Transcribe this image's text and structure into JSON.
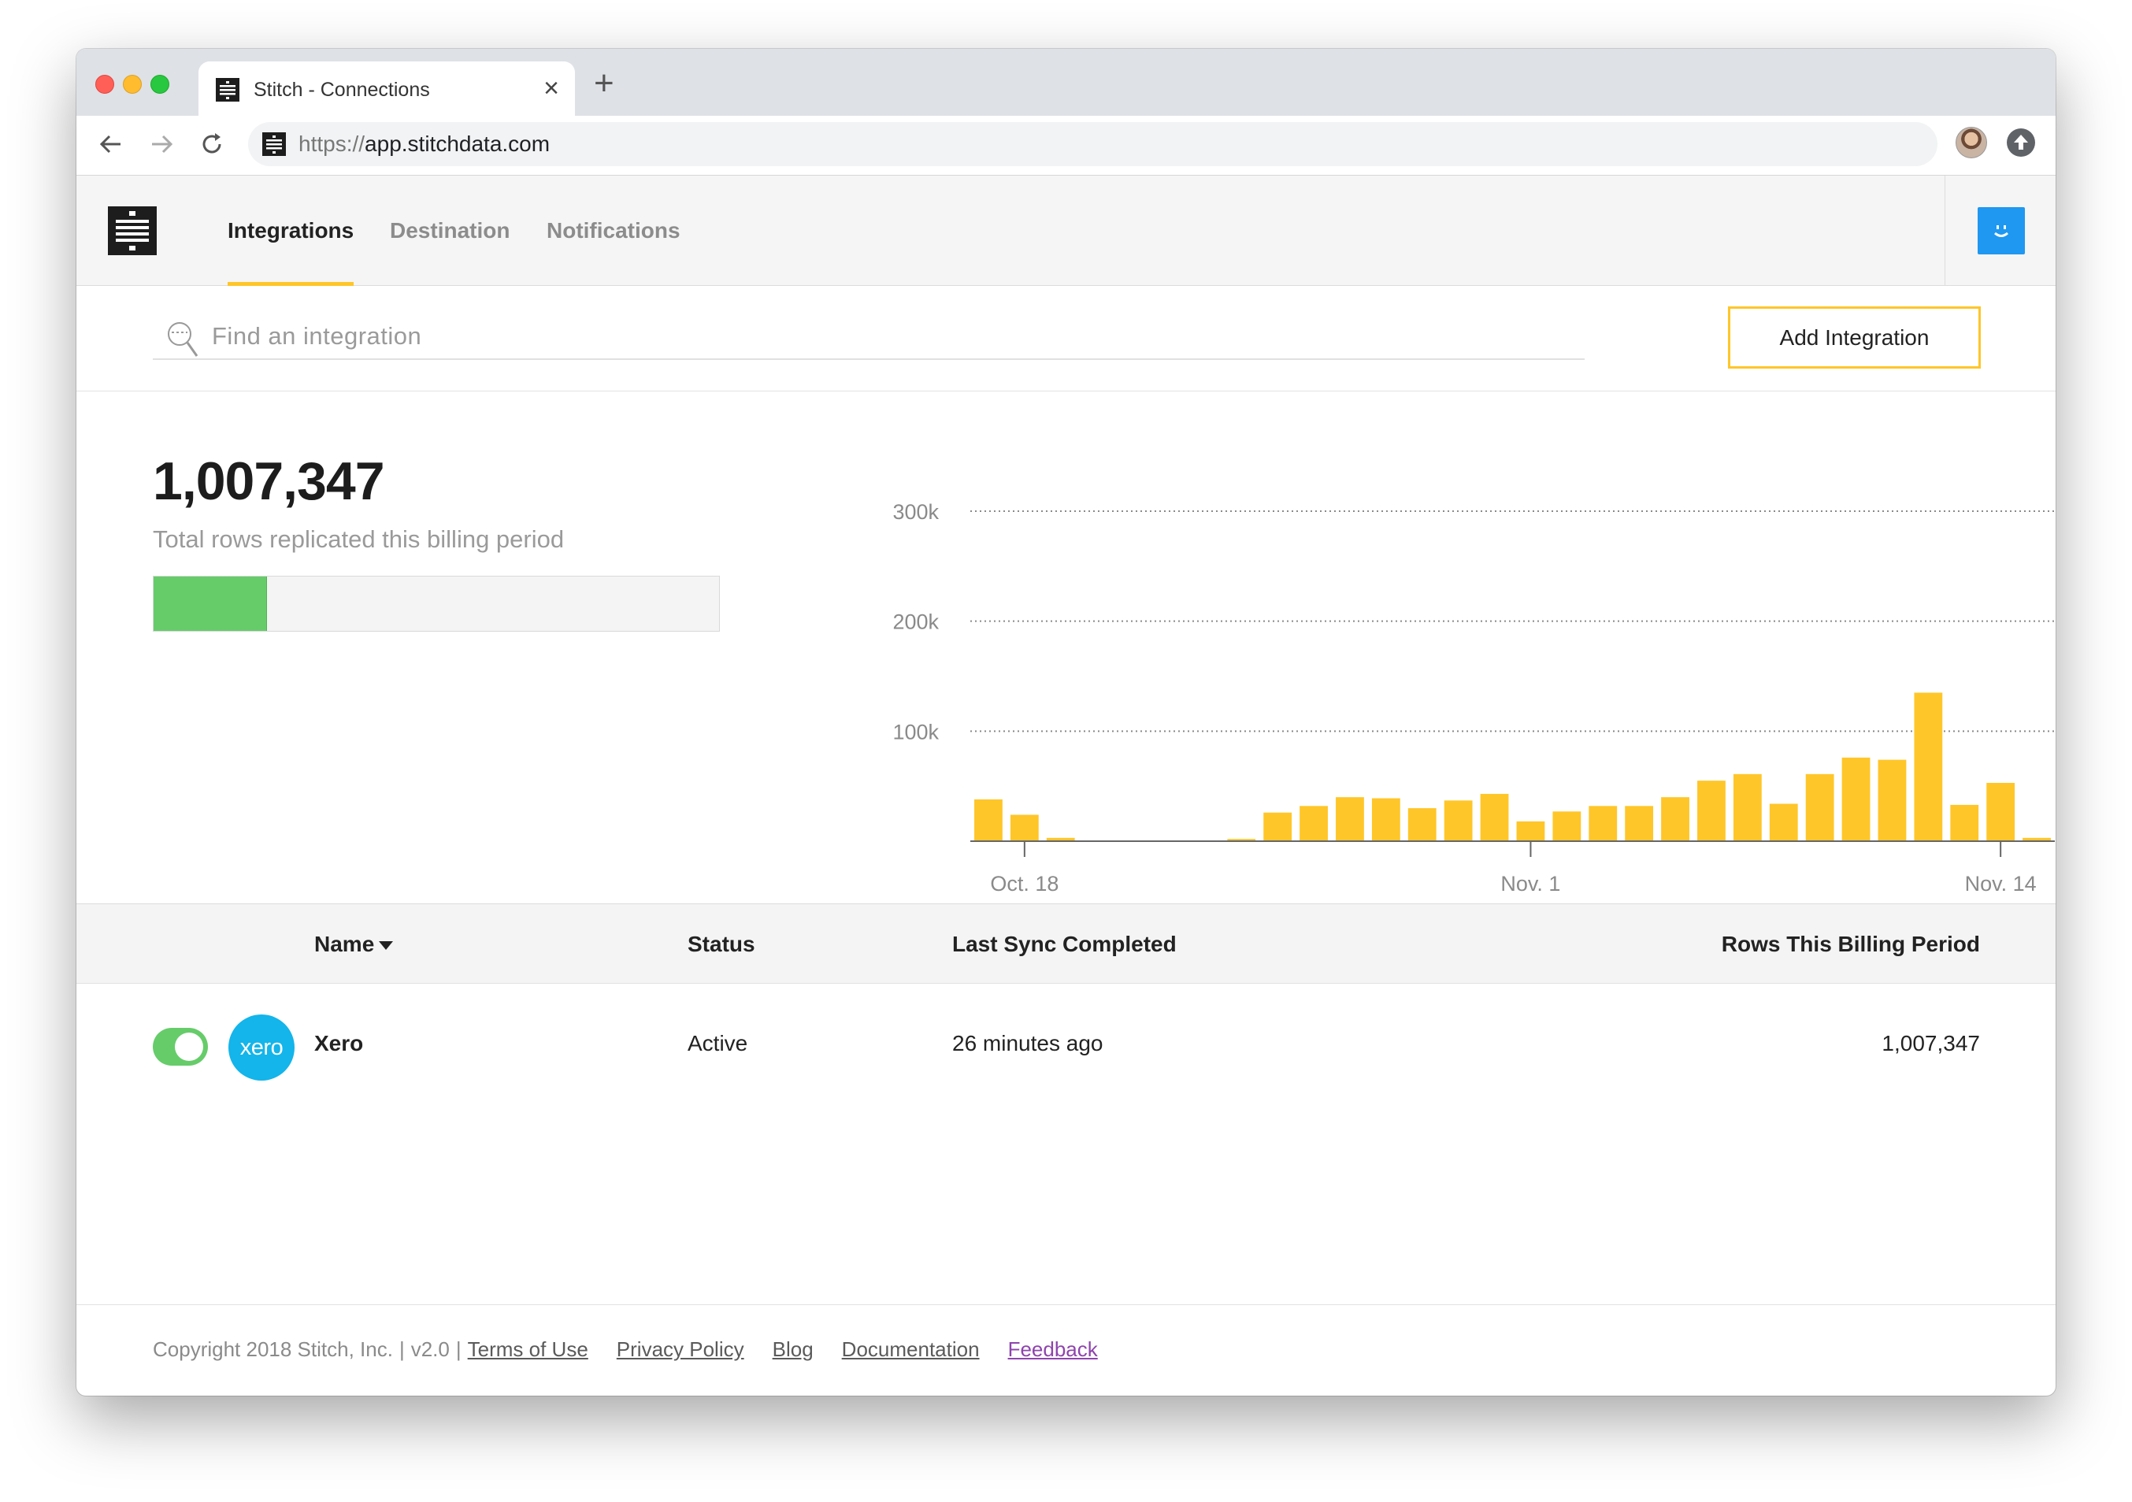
{
  "browser": {
    "tab_title": "Stitch - Connections",
    "url_scheme": "https://",
    "url_host": "app.stitchdata.com"
  },
  "nav": {
    "tabs": [
      "Integrations",
      "Destination",
      "Notifications"
    ],
    "active_tab": "Integrations"
  },
  "search": {
    "placeholder": "Find an integration"
  },
  "actions": {
    "add_integration": "Add Integration"
  },
  "summary": {
    "total_rows": "1,007,347",
    "total_label": "Total rows replicated this billing period",
    "usage_fraction": 0.2
  },
  "chart_data": {
    "type": "bar",
    "title": "",
    "xlabel": "",
    "ylabel": "",
    "ylim": [
      0,
      300000
    ],
    "yticks": [
      100000,
      200000,
      300000
    ],
    "ytick_labels": [
      "100k",
      "200k",
      "300k"
    ],
    "xtick_labels": [
      {
        "label": "Oct. 18",
        "index": 1
      },
      {
        "label": "Nov. 1",
        "index": 15
      },
      {
        "label": "Nov. 14",
        "index": 28
      }
    ],
    "grid": true,
    "color": "#ffc629",
    "values": [
      38000,
      24000,
      3000,
      0,
      0,
      0,
      0,
      2000,
      26000,
      32000,
      40000,
      39000,
      30000,
      37000,
      43000,
      18000,
      27000,
      32000,
      32000,
      40000,
      55000,
      61000,
      34000,
      61000,
      76000,
      74000,
      135000,
      33000,
      53000,
      3000
    ]
  },
  "table": {
    "columns": [
      "Name",
      "Status",
      "Last Sync Completed",
      "Rows This Billing Period"
    ],
    "rows": [
      {
        "logo_text": "xero",
        "name": "Xero",
        "status": "Active",
        "last_sync": "26 minutes ago",
        "rows": "1,007,347",
        "enabled": true
      }
    ]
  },
  "footer": {
    "copyright": "Copyright 2018 Stitch, Inc.",
    "version": "v2.0",
    "links": [
      "Terms of Use",
      "Privacy Policy",
      "Blog",
      "Documentation",
      "Feedback"
    ]
  },
  "icons": {
    "search": "magnifier-icon",
    "back": "arrow-left-icon",
    "forward": "arrow-right-icon",
    "reload": "reload-icon",
    "user": "smiley-icon"
  }
}
